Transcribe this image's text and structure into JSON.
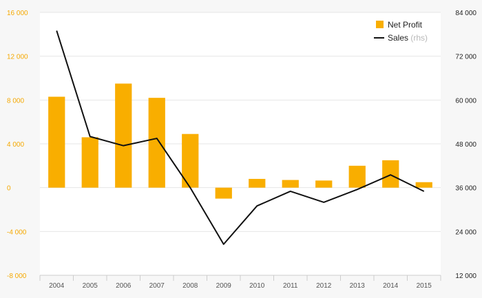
{
  "chart_data": {
    "type": "bar",
    "categories": [
      "2004",
      "2005",
      "2006",
      "2007",
      "2008",
      "2009",
      "2010",
      "2011",
      "2012",
      "2013",
      "2014",
      "2015"
    ],
    "series": [
      {
        "name": "Net Profit",
        "type": "bar",
        "axis": "left",
        "color": "#f9ae00",
        "values": [
          8300,
          4600,
          9500,
          8200,
          4900,
          -1000,
          800,
          700,
          650,
          2000,
          2500,
          500
        ]
      },
      {
        "name": "Sales",
        "name_suffix": "(rhs)",
        "type": "line",
        "axis": "right",
        "color": "#111111",
        "values": [
          79000,
          50000,
          47500,
          49500,
          36000,
          20500,
          31000,
          35000,
          32000,
          35500,
          39500,
          35000
        ]
      }
    ],
    "y_left": {
      "ylim": [
        -8000,
        16000
      ],
      "ticks": [
        "-8 000",
        "-4 000",
        "0",
        "4 000",
        "8 000",
        "12 000",
        "16 000"
      ],
      "tick_values": [
        -8000,
        -4000,
        0,
        4000,
        8000,
        12000,
        16000
      ],
      "color": "#f5a800"
    },
    "y_right": {
      "ylim": [
        12000,
        84000
      ],
      "ticks": [
        "12 000",
        "24 000",
        "36 000",
        "48 000",
        "60 000",
        "72 000",
        "84 000"
      ],
      "tick_values": [
        12000,
        24000,
        36000,
        48000,
        60000,
        72000,
        84000
      ],
      "color": "#222222"
    },
    "grid": true,
    "legend": "top-right"
  }
}
